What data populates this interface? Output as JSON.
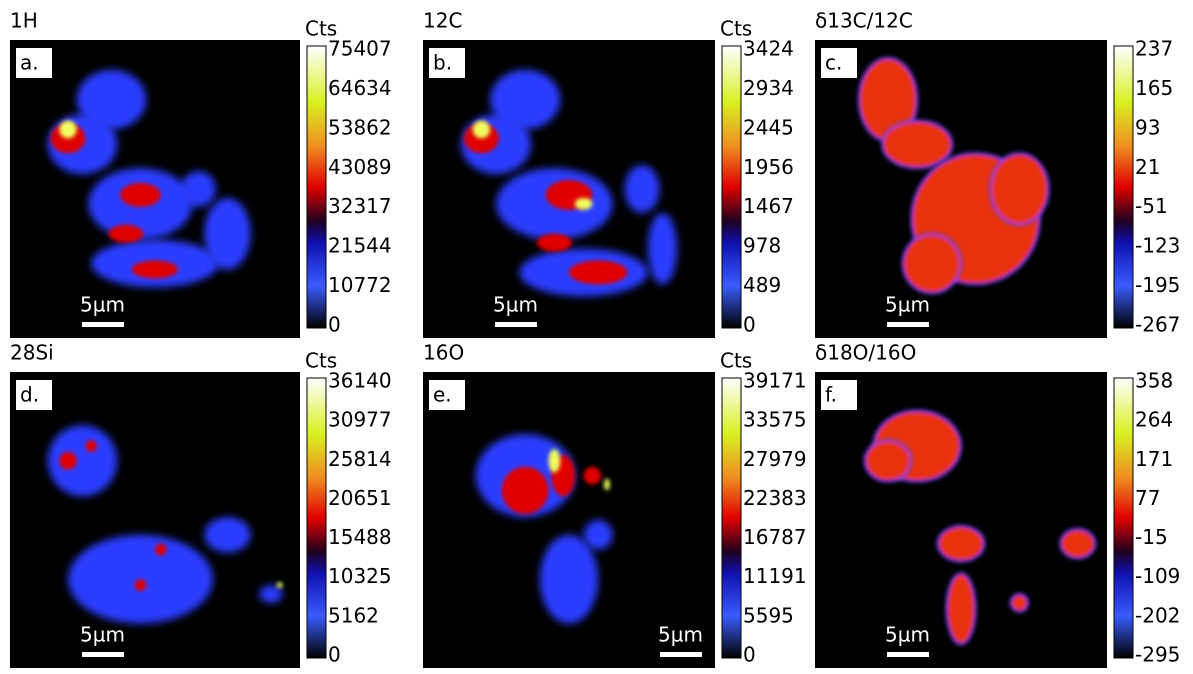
{
  "panels": [
    {
      "title": "1H",
      "letter": "a.",
      "unit": "Cts",
      "scale_bar": "5µm",
      "colorbar_ticks": [
        75407,
        64634,
        53862,
        43089,
        32317,
        21544,
        10772,
        0
      ]
    },
    {
      "title": "12C",
      "letter": "b.",
      "unit": "Cts",
      "scale_bar": "5µm",
      "colorbar_ticks": [
        3424,
        2934,
        2445,
        1956,
        1467,
        978,
        489,
        0
      ]
    },
    {
      "title": "δ13C/12C",
      "letter": "c.",
      "scale_bar": "5µm",
      "colorbar_ticks": [
        237,
        165,
        93,
        21,
        -51,
        -123,
        -195,
        -267
      ]
    },
    {
      "title": "28Si",
      "letter": "d.",
      "unit": "Cts",
      "scale_bar": "5µm",
      "colorbar_ticks": [
        36140,
        30977,
        25814,
        20651,
        15488,
        10325,
        5162,
        0
      ]
    },
    {
      "title": "16O",
      "letter": "e.",
      "unit": "Cts",
      "scale_bar": "5µm",
      "colorbar_ticks": [
        39171,
        33575,
        27979,
        22383,
        16787,
        11191,
        5595,
        0
      ]
    },
    {
      "title": "δ18O/16O",
      "letter": "f.",
      "scale_bar": "5µm",
      "colorbar_ticks": [
        358,
        264,
        171,
        77,
        -15,
        -109,
        -202,
        -295
      ]
    }
  ]
}
